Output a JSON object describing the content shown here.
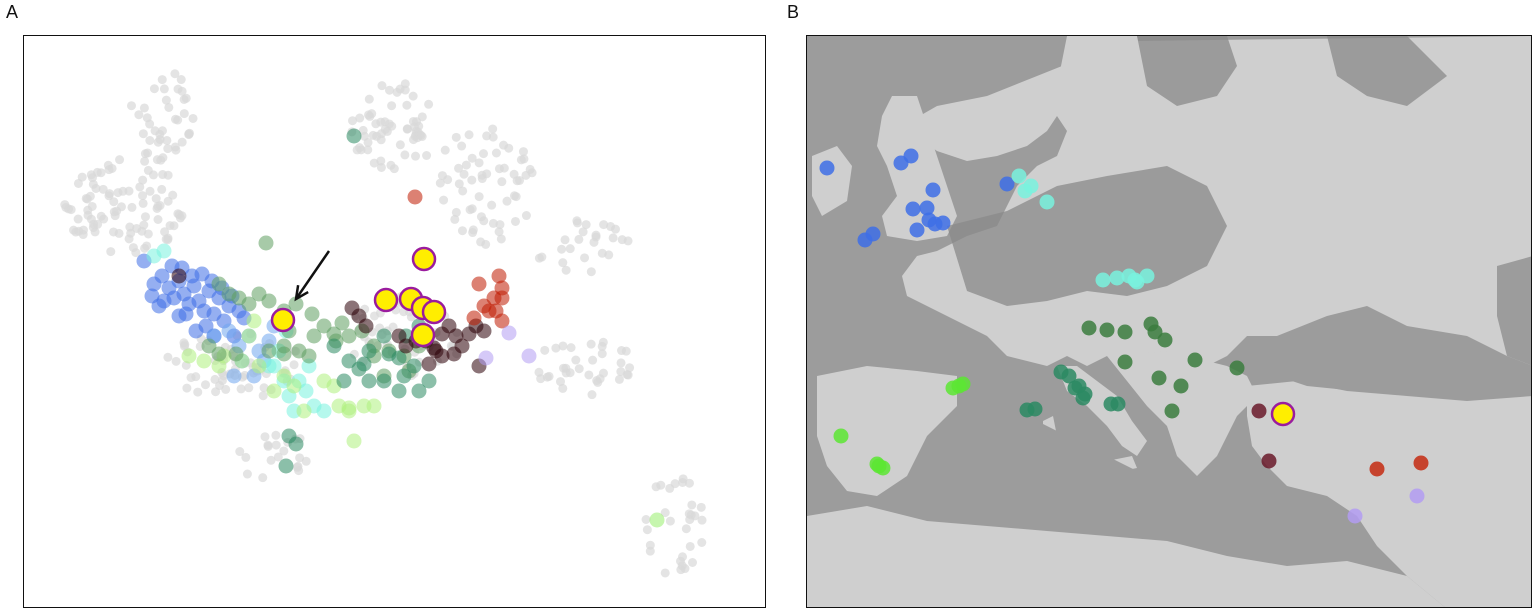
{
  "panels": {
    "a_label": "A",
    "b_label": "B"
  },
  "colors": {
    "background_points": "#d9d9d9",
    "highlight_fill": "#ffee00",
    "highlight_stroke": "#9a1c9e",
    "arrow": "#111111",
    "sea": "#9c9c9c",
    "land_low": "#7f7f7f",
    "land_high": "#e8e8e8"
  },
  "chart_data": [
    {
      "type": "scatter",
      "panel": "A",
      "title": "",
      "xlabel": "",
      "ylabel": "",
      "xlim": [
        0,
        743
      ],
      "ylim": [
        0,
        573
      ],
      "grid": false,
      "legend": "none",
      "annotations": [
        {
          "type": "arrow",
          "from": [
            305,
            215
          ],
          "to": [
            272,
            263
          ]
        }
      ],
      "background_clusters": [
        {
          "cx": 100,
          "cy": 170,
          "rx": 60,
          "ry": 50,
          "n": 90
        },
        {
          "cx": 140,
          "cy": 80,
          "rx": 35,
          "ry": 45,
          "n": 40
        },
        {
          "cx": 370,
          "cy": 90,
          "rx": 45,
          "ry": 45,
          "n": 60
        },
        {
          "cx": 460,
          "cy": 150,
          "rx": 50,
          "ry": 60,
          "n": 60
        },
        {
          "cx": 210,
          "cy": 330,
          "rx": 70,
          "ry": 35,
          "n": 60
        },
        {
          "cx": 380,
          "cy": 300,
          "rx": 60,
          "ry": 40,
          "n": 50
        },
        {
          "cx": 560,
          "cy": 330,
          "rx": 50,
          "ry": 30,
          "n": 35
        },
        {
          "cx": 650,
          "cy": 490,
          "rx": 30,
          "ry": 50,
          "n": 30
        },
        {
          "cx": 250,
          "cy": 420,
          "rx": 40,
          "ry": 25,
          "n": 20
        },
        {
          "cx": 560,
          "cy": 210,
          "rx": 50,
          "ry": 30,
          "n": 25
        }
      ],
      "series": [
        {
          "color": "#3e6ee6",
          "points": [
            [
              120,
              225
            ],
            [
              130,
              248
            ],
            [
              138,
              240
            ],
            [
              145,
              252
            ],
            [
              150,
              262
            ],
            [
              155,
              245
            ],
            [
              160,
              258
            ],
            [
              165,
              268
            ],
            [
              170,
              250
            ],
            [
              175,
              265
            ],
            [
              180,
              275
            ],
            [
              185,
              255
            ],
            [
              190,
              278
            ],
            [
              195,
              262
            ],
            [
              200,
              285
            ],
            [
              205,
              270
            ],
            [
              148,
              230
            ],
            [
              158,
              232
            ],
            [
              168,
              240
            ],
            [
              178,
              238
            ],
            [
              188,
              245
            ],
            [
              198,
              252
            ],
            [
              140,
              265
            ],
            [
              162,
              278
            ],
            [
              182,
              290
            ],
            [
              210,
              300
            ],
            [
              220,
              282
            ],
            [
              128,
              260
            ],
            [
              135,
              270
            ],
            [
              208,
              260
            ],
            [
              215,
              275
            ],
            [
              190,
              300
            ],
            [
              172,
              295
            ],
            [
              155,
              280
            ]
          ]
        },
        {
          "color": "#6fa6ee",
          "points": [
            [
              190,
              300
            ],
            [
              205,
              295
            ],
            [
              215,
              310
            ],
            [
              225,
              300
            ],
            [
              235,
              315
            ],
            [
              245,
              305
            ],
            [
              250,
              290
            ],
            [
              240,
              325
            ],
            [
              218,
              325
            ],
            [
              230,
              340
            ],
            [
              210,
              340
            ]
          ]
        },
        {
          "color": "#79f2de",
          "points": [
            [
              130,
              220
            ],
            [
              140,
              215
            ],
            [
              250,
              330
            ],
            [
              260,
              345
            ],
            [
              265,
              360
            ],
            [
              275,
              345
            ],
            [
              282,
              355
            ],
            [
              290,
              370
            ],
            [
              270,
              375
            ],
            [
              300,
              375
            ],
            [
              255,
              315
            ],
            [
              245,
              330
            ],
            [
              285,
              330
            ],
            [
              262,
              295
            ]
          ]
        },
        {
          "color": "#aef07e",
          "points": [
            [
              165,
              320
            ],
            [
              180,
              325
            ],
            [
              195,
              330
            ],
            [
              200,
              320
            ],
            [
              218,
              325
            ],
            [
              260,
              340
            ],
            [
              270,
              350
            ],
            [
              310,
              350
            ],
            [
              280,
              375
            ],
            [
              325,
              375
            ],
            [
              300,
              345
            ],
            [
              250,
              355
            ],
            [
              235,
              330
            ],
            [
              230,
              285
            ],
            [
              225,
              300
            ],
            [
              315,
              370
            ],
            [
              340,
              370
            ],
            [
              325,
              372
            ],
            [
              350,
              370
            ],
            [
              330,
              405
            ]
          ]
        },
        {
          "color": "#5f9e60",
          "points": [
            [
              242,
              207
            ],
            [
              195,
              248
            ],
            [
              205,
              258
            ],
            [
              215,
              262
            ],
            [
              225,
              268
            ],
            [
              235,
              258
            ],
            [
              245,
              265
            ],
            [
              260,
              275
            ],
            [
              272,
              268
            ],
            [
              288,
              278
            ],
            [
              300,
              290
            ],
            [
              310,
              298
            ],
            [
              318,
              287
            ],
            [
              325,
              300
            ],
            [
              338,
              295
            ],
            [
              290,
              300
            ],
            [
              265,
              295
            ],
            [
              260,
              310
            ],
            [
              350,
              320
            ],
            [
              365,
              315
            ],
            [
              380,
              320
            ],
            [
              395,
              310
            ],
            [
              385,
              335
            ],
            [
              360,
              340
            ],
            [
              350,
              310
            ],
            [
              185,
              310
            ],
            [
              195,
              318
            ],
            [
              212,
              318
            ],
            [
              245,
              315
            ],
            [
              260,
              318
            ],
            [
              275,
              315
            ],
            [
              285,
              320
            ],
            [
              312,
              305
            ]
          ]
        },
        {
          "color": "#2c8a63",
          "points": [
            [
              330,
              100
            ],
            [
              310,
              310
            ],
            [
              325,
              325
            ],
            [
              340,
              328
            ],
            [
              345,
              315
            ],
            [
              360,
              300
            ],
            [
              365,
              318
            ],
            [
              375,
              322
            ],
            [
              380,
              340
            ],
            [
              390,
              330
            ],
            [
              405,
              345
            ],
            [
              395,
              355
            ],
            [
              375,
              355
            ],
            [
              360,
              345
            ],
            [
              345,
              345
            ],
            [
              320,
              345
            ],
            [
              335,
              333
            ],
            [
              265,
              400
            ],
            [
              272,
              408
            ],
            [
              262,
              430
            ],
            [
              382,
              300
            ],
            [
              395,
              290
            ]
          ]
        },
        {
          "color": "#2b0008",
          "points": [
            [
              155,
              240
            ],
            [
              328,
              272
            ],
            [
              335,
              280
            ],
            [
              342,
              290
            ],
            [
              375,
              300
            ],
            [
              382,
              310
            ],
            [
              392,
              305
            ],
            [
              402,
              305
            ],
            [
              410,
              312
            ],
            [
              418,
              298
            ],
            [
              425,
              290
            ],
            [
              432,
              300
            ],
            [
              438,
              310
            ],
            [
              445,
              298
            ],
            [
              452,
              290
            ],
            [
              460,
              295
            ],
            [
              430,
              318
            ],
            [
              418,
              320
            ],
            [
              412,
              315
            ],
            [
              455,
              330
            ],
            [
              405,
              328
            ]
          ]
        },
        {
          "color": "#bf1a00",
          "points": [
            [
              391,
              161
            ],
            [
              455,
              248
            ],
            [
              475,
              240
            ],
            [
              478,
              252
            ],
            [
              470,
              262
            ],
            [
              460,
              270
            ],
            [
              472,
              275
            ],
            [
              478,
              262
            ],
            [
              450,
              282
            ],
            [
              465,
              275
            ],
            [
              478,
              285
            ]
          ]
        },
        {
          "color": "#b39cf2",
          "points": [
            [
              485,
              297
            ],
            [
              505,
              320
            ],
            [
              462,
              322
            ]
          ]
        },
        {
          "color": "#98ee6c",
          "points": [
            [
              633,
              484
            ]
          ]
        }
      ],
      "highlighted": [
        [
          400,
          223
        ],
        [
          362,
          264
        ],
        [
          387,
          263
        ],
        [
          399,
          272
        ],
        [
          410,
          276
        ],
        [
          399,
          299
        ],
        [
          259,
          284
        ]
      ]
    },
    {
      "type": "scatter",
      "panel": "B",
      "title": "",
      "xlabel": "",
      "ylabel": "",
      "xlim": [
        0,
        726
      ],
      "ylim": [
        0,
        573
      ],
      "grid": false,
      "legend": "none",
      "series": [
        {
          "color": "#3e6ee6",
          "points": [
            [
              20,
              132
            ],
            [
              104,
              120
            ],
            [
              94,
              127
            ],
            [
              126,
              154
            ],
            [
              120,
              172
            ],
            [
              106,
              173
            ],
            [
              128,
              188
            ],
            [
              110,
              194
            ],
            [
              122,
              184
            ],
            [
              136,
              187
            ],
            [
              58,
              204
            ],
            [
              66,
              198
            ],
            [
              200,
              148
            ]
          ]
        },
        {
          "color": "#79f2de",
          "points": [
            [
              212,
              140
            ],
            [
              218,
              155
            ],
            [
              224,
              150
            ],
            [
              240,
              166
            ],
            [
              296,
              244
            ],
            [
              310,
              242
            ],
            [
              322,
              240
            ],
            [
              328,
              244
            ],
            [
              340,
              240
            ],
            [
              330,
              246
            ]
          ]
        },
        {
          "color": "#3b7c3e",
          "points": [
            [
              282,
              292
            ],
            [
              300,
              294
            ],
            [
              318,
              296
            ],
            [
              344,
              288
            ],
            [
              348,
              296
            ],
            [
              358,
              304
            ],
            [
              318,
              326
            ],
            [
              352,
              342
            ],
            [
              388,
              324
            ],
            [
              374,
              350
            ],
            [
              430,
              332
            ],
            [
              365,
              375
            ]
          ]
        },
        {
          "color": "#2c8a63",
          "points": [
            [
              254,
              336
            ],
            [
              262,
              340
            ],
            [
              268,
              352
            ],
            [
              272,
              350
            ],
            [
              276,
              362
            ],
            [
              304,
              368
            ],
            [
              220,
              374
            ],
            [
              311,
              368
            ],
            [
              228,
              373
            ],
            [
              278,
              358
            ]
          ]
        },
        {
          "color": "#5ce632",
          "points": [
            [
              146,
              352
            ],
            [
              152,
              350
            ],
            [
              156,
              348
            ],
            [
              34,
              400
            ],
            [
              70,
              428
            ],
            [
              76,
              432
            ],
            [
              72,
              430
            ]
          ]
        },
        {
          "color": "#6a1a2a",
          "points": [
            [
              452,
              375
            ],
            [
              462,
              425
            ]
          ]
        },
        {
          "color": "#c42a10",
          "points": [
            [
              570,
              433
            ],
            [
              614,
              427
            ]
          ]
        },
        {
          "color": "#b39cf2",
          "points": [
            [
              610,
              460
            ],
            [
              548,
              480
            ]
          ]
        }
      ],
      "highlighted": [
        [
          476,
          378
        ]
      ]
    }
  ]
}
